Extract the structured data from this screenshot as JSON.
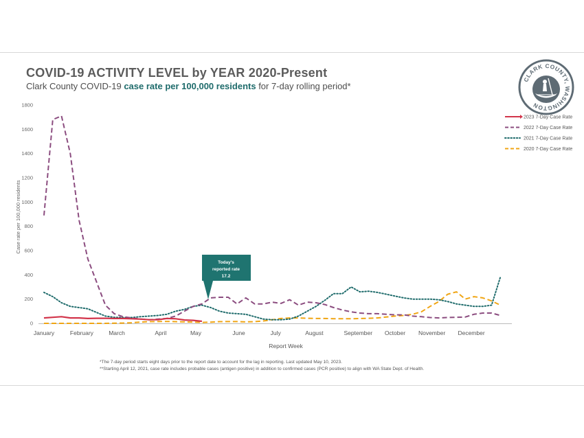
{
  "header": {
    "title": "COVID-19 ACTIVITY LEVEL by YEAR 2020-Present",
    "subtitle_prefix": "Clark County COVID-19 ",
    "subtitle_highlight": "case rate per 100,000 residents",
    "subtitle_suffix": " for 7-day rolling period*"
  },
  "logo": {
    "text": "CLARK COUNTY, WASHINGTON",
    "icon": "seal-canoe-icon"
  },
  "callout": {
    "line1": "Today's",
    "line2": "reported rate",
    "value": "17.2"
  },
  "footnotes": [
    "*The 7-day period starts eight days prior to the report date to account for the lag in reporting.  Last updated  May 10, 2023.",
    "**Starting  April 12, 2021, case rate includes probable cases (antigen positive) in addition  to confirmed cases (PCR positive) to align with WA State Dept. of Health."
  ],
  "chart_data": {
    "type": "line",
    "title": "COVID-19 ACTIVITY LEVEL by YEAR 2020-Present",
    "xlabel": "Report Week",
    "ylabel": "Case rate per 100,000 residents",
    "ylim": [
      0,
      1800
    ],
    "yticks": [
      0,
      200,
      400,
      600,
      800,
      1000,
      1200,
      1400,
      1600,
      1800
    ],
    "xlim": [
      0,
      53
    ],
    "month_ticks": [
      {
        "label": "January",
        "week": 0
      },
      {
        "label": "February",
        "week": 4.3
      },
      {
        "label": "March",
        "week": 8.3
      },
      {
        "label": "April",
        "week": 13.3
      },
      {
        "label": "May",
        "week": 17.3
      },
      {
        "label": "June",
        "week": 22.2
      },
      {
        "label": "July",
        "week": 26.4
      },
      {
        "label": "August",
        "week": 30.8
      },
      {
        "label": "September",
        "week": 35.8
      },
      {
        "label": "October",
        "week": 40
      },
      {
        "label": "November",
        "week": 44.2
      },
      {
        "label": "December",
        "week": 48.7
      }
    ],
    "grid": false,
    "legend_position": "right",
    "series": [
      {
        "name": "2023 7-Day Case Rate",
        "color": "#d2344a",
        "style": "solid",
        "x": [
          0,
          1,
          2,
          3,
          4,
          5,
          6,
          7,
          8,
          9,
          10,
          11,
          12,
          13,
          14,
          15,
          16,
          17,
          18
        ],
        "values": [
          45,
          50,
          55,
          45,
          45,
          40,
          42,
          42,
          40,
          40,
          38,
          35,
          30,
          30,
          40,
          38,
          28,
          25,
          17.2
        ]
      },
      {
        "name": "2022 7-Day Case Rate",
        "color": "#8b4c7f",
        "style": "dashed",
        "x": [
          0,
          1,
          2,
          3,
          4,
          5,
          6,
          7,
          8,
          9,
          10,
          11,
          12,
          13,
          14,
          15,
          16,
          17,
          18,
          19,
          20,
          21,
          22,
          23,
          24,
          25,
          26,
          27,
          28,
          29,
          30,
          31,
          32,
          33,
          34,
          35,
          36,
          37,
          38,
          39,
          40,
          41,
          42,
          43,
          44,
          45,
          46,
          47,
          48,
          49,
          50,
          51,
          52
        ],
        "values": [
          890,
          1680,
          1710,
          1400,
          850,
          530,
          340,
          150,
          80,
          55,
          45,
          35,
          30,
          35,
          40,
          60,
          100,
          140,
          160,
          210,
          215,
          215,
          160,
          210,
          160,
          160,
          175,
          165,
          195,
          150,
          175,
          170,
          155,
          130,
          110,
          95,
          85,
          80,
          80,
          75,
          70,
          70,
          60,
          55,
          48,
          45,
          48,
          50,
          52,
          75,
          85,
          85,
          65
        ]
      },
      {
        "name": "2021 7-Day Case Rate",
        "color": "#1e6b6b",
        "style": "dotted",
        "x": [
          0,
          1,
          2,
          3,
          4,
          5,
          6,
          7,
          8,
          9,
          10,
          11,
          12,
          13,
          14,
          15,
          16,
          17,
          18,
          19,
          20,
          21,
          22,
          23,
          24,
          25,
          26,
          27,
          28,
          29,
          30,
          31,
          32,
          33,
          34,
          35,
          36,
          37,
          38,
          39,
          40,
          41,
          42,
          43,
          44,
          45,
          46,
          47,
          48,
          49,
          50,
          51,
          52
        ],
        "values": [
          255,
          220,
          170,
          140,
          130,
          120,
          90,
          60,
          50,
          48,
          48,
          55,
          60,
          65,
          75,
          100,
          115,
          140,
          150,
          130,
          100,
          85,
          80,
          75,
          55,
          35,
          30,
          30,
          35,
          60,
          100,
          140,
          190,
          245,
          245,
          300,
          260,
          265,
          255,
          240,
          225,
          210,
          200,
          200,
          200,
          195,
          180,
          160,
          150,
          140,
          140,
          150,
          380
        ]
      },
      {
        "name": "2020 7-Day Case Rate",
        "color": "#f0a513",
        "style": "dashed",
        "x": [
          0,
          1,
          2,
          3,
          4,
          5,
          6,
          7,
          8,
          9,
          10,
          11,
          12,
          13,
          14,
          15,
          16,
          17,
          18,
          19,
          20,
          21,
          22,
          23,
          24,
          25,
          26,
          27,
          28,
          29,
          30,
          31,
          32,
          33,
          34,
          35,
          36,
          37,
          38,
          39,
          40,
          41,
          42,
          43,
          44,
          45,
          46,
          47,
          48,
          49,
          50,
          51,
          52
        ],
        "values": [
          0,
          0,
          0,
          0,
          0,
          0,
          0,
          0,
          1,
          2,
          5,
          10,
          14,
          15,
          16,
          14,
          12,
          10,
          8,
          10,
          14,
          15,
          15,
          12,
          14,
          20,
          30,
          40,
          45,
          45,
          42,
          40,
          40,
          38,
          38,
          38,
          40,
          42,
          45,
          52,
          60,
          65,
          75,
          95,
          140,
          180,
          240,
          260,
          200,
          220,
          210,
          185,
          150
        ]
      }
    ]
  }
}
